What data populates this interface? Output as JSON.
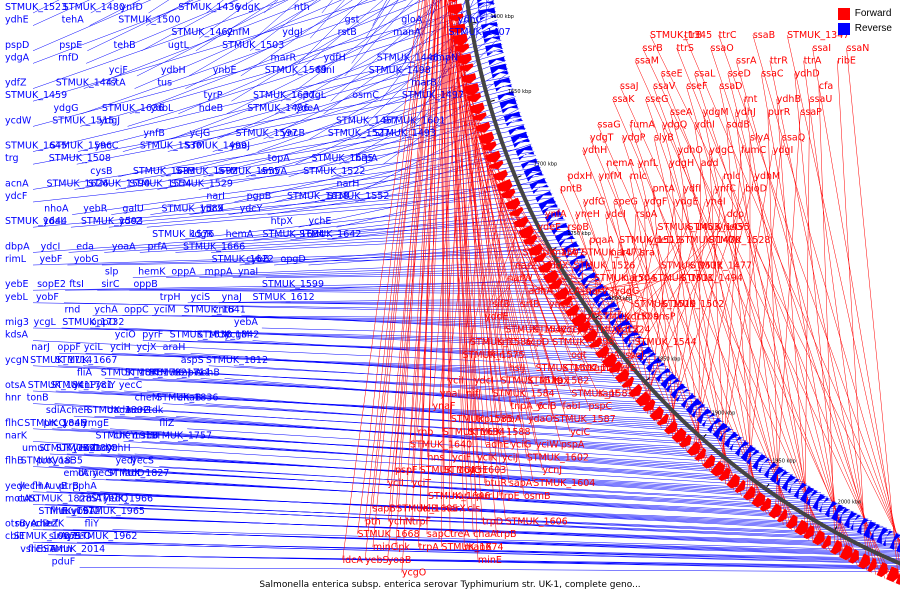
{
  "caption": "Salmonella enterica subsp. enterica serovar Typhimurium str. UK-1, complete geno...",
  "legend": [
    {
      "label": "Forward",
      "color": "#ff0000"
    },
    {
      "label": "Reverse",
      "color": "#0000ff"
    }
  ],
  "colors": {
    "forward": "#ff0000",
    "reverse": "#0000ff",
    "backbone": "#444444"
  },
  "ticks": [
    "1450 kbp",
    "1500 kbp",
    "1550 kbp",
    "1600 kbp",
    "1650 kbp",
    "1700 kbp",
    "1750 kbp",
    "1800 kbp",
    "1850 kbp",
    "1900 kbp",
    "1950 kbp",
    "2000 kbp",
    "2050 kbp",
    "2100 kbp"
  ],
  "reverse_genes": [
    "STMUK_1523",
    "STMUK_1480",
    "ynfD",
    "STMUK_1436",
    "ydgK",
    "nth",
    "gst",
    "gloA",
    "ydhC",
    "ydhE",
    "tehA",
    "STMUK_1500",
    "STMUK_1462",
    "ynfM",
    "ydgI",
    "rstB",
    "manA",
    "STMUK_1407",
    "pspD",
    "pspE",
    "tehB",
    "ugtL",
    "STMUK_1503",
    "marR",
    "ydfH",
    "STMUK_1448",
    "ompN",
    "ydgA",
    "rnfD",
    "ycjF",
    "ydbH",
    "ynbE",
    "STMUK_1569",
    "fdnI",
    "STMUK_1498",
    "marB",
    "ydfZ",
    "STMUK_1447",
    "rstA",
    "tus",
    "tyrP",
    "STMUK_1637",
    "pdgL",
    "osmC",
    "STMUK_1497",
    "STMUK_1459",
    "ydgG",
    "STMUK_1636",
    "ydbL",
    "hdeB",
    "STMUK_1496",
    "ydeA",
    "STMUK_1457",
    "STMUK_1601",
    "ycdW",
    "STMUK_1515",
    "ydgJ",
    "ynfB",
    "ycjG",
    "STMUK_1597",
    "yncB",
    "STMUK_1527",
    "STMUK_1493",
    "STMUK_1645",
    "STMUK_1596",
    "yncC",
    "STMUK_1530",
    "STMUK_1499",
    "yneJ",
    "topA",
    "STMUK_1635",
    "hrpA",
    "trg",
    "STMUK_1508",
    "cysB",
    "STMUK_1633",
    "STMUK_1592",
    "STMUK_1555",
    "smvA",
    "STMUK_1522",
    "narH",
    "acnA",
    "STMUK_1626",
    "STMUK_1590",
    "STMUK_1554",
    "STMUK_1529",
    "narI",
    "pgpB",
    "STMUK_1618",
    "STMUK_1552",
    "ydcF",
    "nhoA",
    "yebR",
    "galU",
    "STMUK_1589",
    "ydcX",
    "ydcY",
    "htpX",
    "ychE",
    "STMUK_1644",
    "ydaL",
    "STMUK_1593",
    "ydcZ",
    "STMUK_1576",
    "kdgR",
    "hemA",
    "STMUK_1684",
    "STMUK_1642",
    "dbpA",
    "ydcI",
    "eda",
    "yoaA",
    "prfA",
    "STMUK_1666",
    "STMUK_1622",
    "cybB",
    "opgD",
    "rimL",
    "yebF",
    "yobG",
    "slp",
    "hemK",
    "oppA",
    "mppA",
    "ynaI",
    "STMUK_1599",
    "yebE",
    "sopE2",
    "ftsI",
    "sirC",
    "oppB",
    "trpH",
    "yciS",
    "ynaJ",
    "STMUK_1612",
    "yebL",
    "yobF",
    "rnd",
    "ychA",
    "oppC",
    "yciM",
    "STMUK_1641",
    "zntB",
    "yebA",
    "mig3",
    "ycgL",
    "STMUK_1732",
    "oppD",
    "yciO",
    "pyrF",
    "STMUK_1638",
    "STMUK_1842",
    "ycgM",
    "kdsA",
    "narJ",
    "oppF",
    "yciL",
    "yciH",
    "ycjX",
    "araH",
    "aspS",
    "STMUK_1812",
    "ycgN",
    "STMUK_1714",
    "STMUK_1667",
    "fliA",
    "STMUK_1848",
    "STMUK_1782",
    "STMUK_1711",
    "ompW",
    "sohB",
    "otsA",
    "STMUK_1841",
    "STMUK_1781",
    "ycnP",
    "yciY",
    "yecC",
    "cheM",
    "STMUK_1836",
    "chaB",
    "hnr",
    "tonB",
    "sdiA",
    "cheR",
    "STMUK_1802",
    "dadA",
    "narG",
    "tdk",
    "fliZ",
    "flhC",
    "STMUK_1846",
    "prcQ",
    "yoaH",
    "ymgE",
    "STMUK_1918",
    "cheY",
    "msbB",
    "STMUK_1757",
    "narK",
    "umuC",
    "STMUK_1891",
    "STMUK_1809",
    "yeaZ",
    "dadX",
    "ychH",
    "yedJ",
    "yecS",
    "flhB",
    "STMUK_1835",
    "proV",
    "yoaE",
    "emtA",
    "dcm",
    "yecM",
    "STMUK_1827",
    "fadD",
    "yedI",
    "yecH",
    "flhA",
    "ruvB",
    "ptrB",
    "pphA",
    "rrmA",
    "STMUK_1966",
    "yedQ",
    "motA",
    "cutC",
    "STMUK_1828",
    "STMUK_1912",
    "flhE",
    "ruvC",
    "yobA",
    "STMUK_1965",
    "fliY",
    "otsB",
    "ruvA",
    "yedD",
    "cheZ",
    "erfK",
    "sirA",
    "cspB",
    "yeeO",
    "STMUK_1962",
    "cbiE",
    "STMUK_1987",
    "vsr",
    "fliE",
    "cbiA",
    "STMUK_2014",
    "amn",
    "pduF"
  ],
  "forward_genes": [
    "STMUK_1345",
    "ttrB",
    "ttrC",
    "ssaB",
    "STMUK_1347",
    "ssaI",
    "ssaN",
    "ssrB",
    "ttrS",
    "ssaO",
    "ssrA",
    "ttrR",
    "ttrA",
    "ribE",
    "ssaM",
    "sseE",
    "ssaL",
    "sseD",
    "ssaC",
    "ydhD",
    "cfa",
    "ssaJ",
    "ssaV",
    "sseF",
    "ssaD",
    "rnt",
    "ydhB",
    "ssaU",
    "ssaK",
    "sseG",
    "sseA",
    "ydgM",
    "ydhJ",
    "purR",
    "ssaP",
    "ssaG",
    "fumA",
    "ydgQ",
    "ydhI",
    "sodB",
    "slyA",
    "ssaQ",
    "ydgT",
    "ydgP",
    "slyB",
    "ydhO",
    "ydgC",
    "fumC",
    "ydgI",
    "ydhH",
    "nemA",
    "ynfL",
    "ydgH",
    "add",
    "mlc",
    "ydhM",
    "pdxH",
    "ynfM",
    "mlc",
    "pntA",
    "ydfI",
    "ynfC",
    "bioD",
    "pntB",
    "ydfG",
    "speG",
    "ydgF",
    "ydgE",
    "yneI",
    "dcp",
    "ynfA",
    "yneH",
    "ydeI",
    "rspA",
    "STMUK_1453",
    "STMUK_1455",
    "yneG",
    "ydeE",
    "rspB",
    "pqaA",
    "STMUK_1513",
    "ydeD",
    "STMUK_1470",
    "STMUK_1528",
    "STMUK_1507",
    "marA",
    "STMUK_1471",
    "narU",
    "sra",
    "STMUK_1512",
    "STMUK_1477",
    "narZ",
    "yddX",
    "STMUK_1526",
    "STMUK_1504",
    "narY",
    "STMUK_1511",
    "STMUK_1494",
    "narW",
    "adhA",
    "yncA",
    "narV",
    "ydgG",
    "STMUK_1519",
    "STMUK_1502",
    "sifB",
    "srfB",
    "yncD",
    "nmpC",
    "STMUK_1509",
    "ydcK",
    "ansP",
    "yddE",
    "STMUK_1542",
    "STMUK_1514",
    "ydcJ",
    "STMUK_1524",
    "ydcZ",
    "STMUK_1544",
    "STMUK_1586",
    "srfC",
    "acpD",
    "STMUK_1598",
    "ogt",
    "ldhA",
    "sseJ",
    "STMUK_1575",
    "fnr",
    "hslJ",
    "STMUK_1607",
    "STMUK_1581",
    "sapD",
    "ycjE",
    "yciI",
    "ydcI",
    "STMUK_1619",
    "STMUK_1582",
    "tpx",
    "STMUK_1583",
    "sapF",
    "ynaI",
    "nifJ",
    "STMUK_1584",
    "tnpA_6",
    "yciB",
    "fabI",
    "pspC",
    "ynaF",
    "STMUK_1585",
    "trpL",
    "ribA",
    "ydaO",
    "STMUK_1587",
    "yciC",
    "rnb",
    "STMUK_1634",
    "STMUK_1588",
    "adhE",
    "yciG",
    "yciW",
    "pspA",
    "STMUK_1640",
    "hns",
    "yciF",
    "yciK",
    "yciJ",
    "STMUK_1602",
    "ycnJ",
    "pspF",
    "STMUK_1643",
    "STMUK_1603",
    "yciE",
    "btuR",
    "sapA",
    "STMUK_1604",
    "yciI",
    "yciT",
    "STMUK_1646",
    "narL",
    "purU",
    "trpE",
    "osmB",
    "sapB",
    "STMUK_1605",
    "lolB",
    "narX",
    "cls",
    "trpD",
    "STMUK_1606",
    "pth",
    "ychN",
    "trpF",
    "sapC",
    "treA",
    "chaA",
    "trpB",
    "STMUK_1668",
    "minC",
    "ipk",
    "trpA",
    "STMUK_1674",
    "manX",
    "minE",
    "ldcA",
    "yebS",
    "yoaB",
    "ycgO"
  ]
}
